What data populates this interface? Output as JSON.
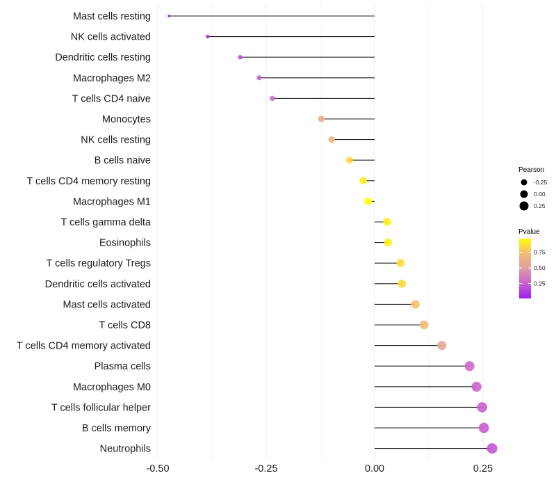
{
  "chart_data": {
    "type": "lollipop",
    "title": "",
    "xlabel": "",
    "ylabel": "",
    "xlim": [
      -0.5,
      0.28
    ],
    "x_ticks": [
      -0.5,
      -0.25,
      0.0,
      0.25
    ],
    "x_tick_labels": [
      "-0.50",
      "-0.25",
      "0.00",
      "0.25"
    ],
    "grid": "vertical major and minor",
    "categories": [
      "Mast cells resting",
      "NK cells activated",
      "Dendritic cells resting",
      "Macrophages M2",
      "T cells CD4 naive",
      "Monocytes",
      "NK cells resting",
      "B cells naive",
      "T cells CD4 memory resting",
      "Macrophages M1",
      "T cells gamma delta",
      "Eosinophils",
      "T cells regulatory  Tregs ",
      "Dendritic cells activated",
      "Mast cells activated",
      "T cells CD8",
      "T cells CD4 memory activated",
      "Plasma cells",
      "Macrophages M0",
      "T cells follicular helper",
      "B cells memory",
      "Neutrophils"
    ],
    "pearson": [
      -0.474,
      -0.385,
      -0.31,
      -0.266,
      -0.236,
      -0.123,
      -0.099,
      -0.058,
      -0.026,
      -0.015,
      0.029,
      0.031,
      0.06,
      0.063,
      0.094,
      0.114,
      0.155,
      0.219,
      0.235,
      0.248,
      0.252,
      0.271
    ],
    "pvalue": [
      0.01,
      0.05,
      0.18,
      0.25,
      0.32,
      0.62,
      0.7,
      0.84,
      0.92,
      0.97,
      0.93,
      0.92,
      0.86,
      0.85,
      0.77,
      0.71,
      0.56,
      0.3,
      0.28,
      0.26,
      0.25,
      0.22
    ],
    "legend": {
      "position": "right",
      "size": {
        "title": "Pearson",
        "labels": [
          "-0.25",
          "0.00",
          "0.25"
        ],
        "values": [
          -0.25,
          0.0,
          0.25
        ]
      },
      "color": {
        "title": "Pvalue",
        "labels": [
          "0.75",
          "0.50",
          "0.25"
        ],
        "values": [
          0.75,
          0.5,
          0.25
        ],
        "range": [
          0.01,
          0.97
        ],
        "low_color": "#a020f0",
        "mid_color": "#e0a0a0",
        "high_color": "#ffff00"
      }
    }
  }
}
